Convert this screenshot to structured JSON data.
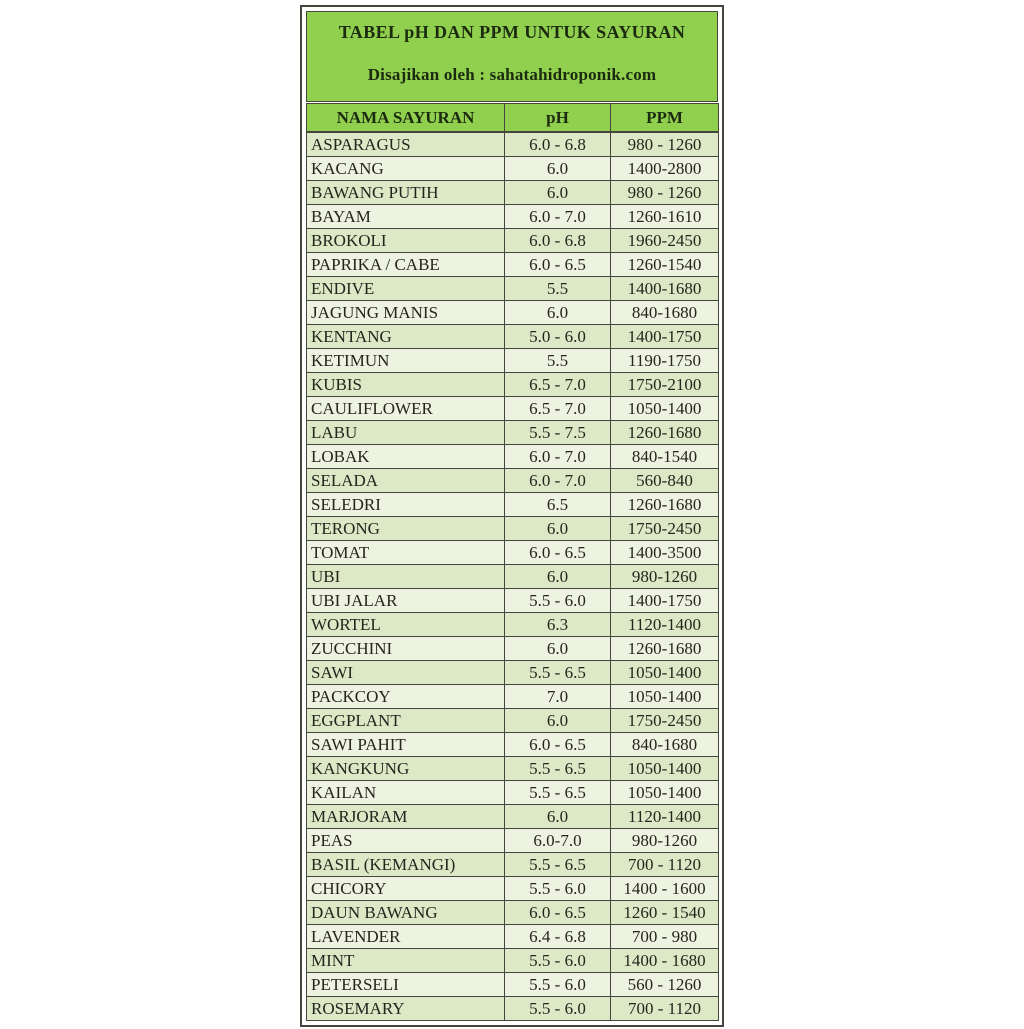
{
  "colors": {
    "header_green": "#90d04e",
    "row_odd": "#dce8c6",
    "row_even": "#edf2e1",
    "border_dark": "#45453e",
    "text_dark": "#1c2a10",
    "text_body": "#25251d"
  },
  "header": {
    "title": "TABEL pH DAN PPM UNTUK SAYURAN",
    "subtitle": "Disajikan oleh : sahatahidroponik.com"
  },
  "table": {
    "columns": [
      "NAMA SAYURAN",
      "pH",
      "PPM"
    ],
    "rows": [
      [
        "ASPARAGUS",
        "6.0 - 6.8",
        "980 - 1260"
      ],
      [
        "KACANG",
        "6.0",
        "1400-2800"
      ],
      [
        "BAWANG PUTIH",
        "6.0",
        "980 - 1260"
      ],
      [
        "BAYAM",
        "6.0 - 7.0",
        "1260-1610"
      ],
      [
        "BROKOLI",
        "6.0 - 6.8",
        "1960-2450"
      ],
      [
        "PAPRIKA / CABE",
        "6.0 - 6.5",
        "1260-1540"
      ],
      [
        "ENDIVE",
        "5.5",
        "1400-1680"
      ],
      [
        "JAGUNG MANIS",
        "6.0",
        "840-1680"
      ],
      [
        "KENTANG",
        "5.0 - 6.0",
        "1400-1750"
      ],
      [
        "KETIMUN",
        "5.5",
        "1190-1750"
      ],
      [
        "KUBIS",
        "6.5 - 7.0",
        "1750-2100"
      ],
      [
        "CAULIFLOWER",
        "6.5 - 7.0",
        "1050-1400"
      ],
      [
        "LABU",
        "5.5 - 7.5",
        "1260-1680"
      ],
      [
        "LOBAK",
        "6.0 - 7.0",
        "840-1540"
      ],
      [
        "SELADA",
        "6.0 - 7.0",
        "560-840"
      ],
      [
        "SELEDRI",
        "6.5",
        "1260-1680"
      ],
      [
        "TERONG",
        "6.0",
        "1750-2450"
      ],
      [
        "TOMAT",
        "6.0 - 6.5",
        "1400-3500"
      ],
      [
        "UBI",
        "6.0",
        "980-1260"
      ],
      [
        "UBI JALAR",
        "5.5 - 6.0",
        "1400-1750"
      ],
      [
        "WORTEL",
        "6.3",
        "1120-1400"
      ],
      [
        "ZUCCHINI",
        "6.0",
        "1260-1680"
      ],
      [
        "SAWI",
        "5.5 - 6.5",
        "1050-1400"
      ],
      [
        "PACKCOY",
        "7.0",
        "1050-1400"
      ],
      [
        "EGGPLANT",
        "6.0",
        "1750-2450"
      ],
      [
        "SAWI PAHIT",
        "6.0 - 6.5",
        "840-1680"
      ],
      [
        "KANGKUNG",
        "5.5 - 6.5",
        "1050-1400"
      ],
      [
        "KAILAN",
        "5.5 - 6.5",
        "1050-1400"
      ],
      [
        "MARJORAM",
        "6.0",
        "1120-1400"
      ],
      [
        "PEAS",
        "6.0-7.0",
        "980-1260"
      ],
      [
        "BASIL (KEMANGI)",
        "5.5 - 6.5",
        "700 - 1120"
      ],
      [
        "CHICORY",
        "5.5 - 6.0",
        "1400 - 1600"
      ],
      [
        "DAUN BAWANG",
        "6.0 - 6.5",
        "1260 - 1540"
      ],
      [
        "LAVENDER",
        "6.4 - 6.8",
        "700 - 980"
      ],
      [
        "MINT",
        "5.5 - 6.0",
        "1400 - 1680"
      ],
      [
        "PETERSELI",
        "5.5 - 6.0",
        "560 - 1260"
      ],
      [
        "ROSEMARY",
        "5.5 - 6.0",
        "700 - 1120"
      ]
    ]
  },
  "chart_data": {
    "type": "table",
    "title": "TABEL pH DAN PPM UNTUK SAYURAN",
    "subtitle": "Disajikan oleh : sahatahidroponik.com",
    "columns": [
      "NAMA SAYURAN",
      "pH",
      "PPM"
    ],
    "rows": [
      [
        "ASPARAGUS",
        "6.0 - 6.8",
        "980 - 1260"
      ],
      [
        "KACANG",
        "6.0",
        "1400-2800"
      ],
      [
        "BAWANG PUTIH",
        "6.0",
        "980 - 1260"
      ],
      [
        "BAYAM",
        "6.0 - 7.0",
        "1260-1610"
      ],
      [
        "BROKOLI",
        "6.0 - 6.8",
        "1960-2450"
      ],
      [
        "PAPRIKA / CABE",
        "6.0 - 6.5",
        "1260-1540"
      ],
      [
        "ENDIVE",
        "5.5",
        "1400-1680"
      ],
      [
        "JAGUNG MANIS",
        "6.0",
        "840-1680"
      ],
      [
        "KENTANG",
        "5.0 - 6.0",
        "1400-1750"
      ],
      [
        "KETIMUN",
        "5.5",
        "1190-1750"
      ],
      [
        "KUBIS",
        "6.5 - 7.0",
        "1750-2100"
      ],
      [
        "CAULIFLOWER",
        "6.5 - 7.0",
        "1050-1400"
      ],
      [
        "LABU",
        "5.5 - 7.5",
        "1260-1680"
      ],
      [
        "LOBAK",
        "6.0 - 7.0",
        "840-1540"
      ],
      [
        "SELADA",
        "6.0 - 7.0",
        "560-840"
      ],
      [
        "SELEDRI",
        "6.5",
        "1260-1680"
      ],
      [
        "TERONG",
        "6.0",
        "1750-2450"
      ],
      [
        "TOMAT",
        "6.0 - 6.5",
        "1400-3500"
      ],
      [
        "UBI",
        "6.0",
        "980-1260"
      ],
      [
        "UBI JALAR",
        "5.5 - 6.0",
        "1400-1750"
      ],
      [
        "WORTEL",
        "6.3",
        "1120-1400"
      ],
      [
        "ZUCCHINI",
        "6.0",
        "1260-1680"
      ],
      [
        "SAWI",
        "5.5 - 6.5",
        "1050-1400"
      ],
      [
        "PACKCOY",
        "7.0",
        "1050-1400"
      ],
      [
        "EGGPLANT",
        "6.0",
        "1750-2450"
      ],
      [
        "SAWI PAHIT",
        "6.0 - 6.5",
        "840-1680"
      ],
      [
        "KANGKUNG",
        "5.5 - 6.5",
        "1050-1400"
      ],
      [
        "KAILAN",
        "5.5 - 6.5",
        "1050-1400"
      ],
      [
        "MARJORAM",
        "6.0",
        "1120-1400"
      ],
      [
        "PEAS",
        "6.0-7.0",
        "980-1260"
      ],
      [
        "BASIL (KEMANGI)",
        "5.5 - 6.5",
        "700 - 1120"
      ],
      [
        "CHICORY",
        "5.5 - 6.0",
        "1400 - 1600"
      ],
      [
        "DAUN BAWANG",
        "6.0 - 6.5",
        "1260 - 1540"
      ],
      [
        "LAVENDER",
        "6.4 - 6.8",
        "700 - 980"
      ],
      [
        "MINT",
        "5.5 - 6.0",
        "1400 - 1680"
      ],
      [
        "PETERSELI",
        "5.5 - 6.0",
        "560 - 1260"
      ],
      [
        "ROSEMARY",
        "5.5 - 6.0",
        "700 - 1120"
      ]
    ]
  }
}
